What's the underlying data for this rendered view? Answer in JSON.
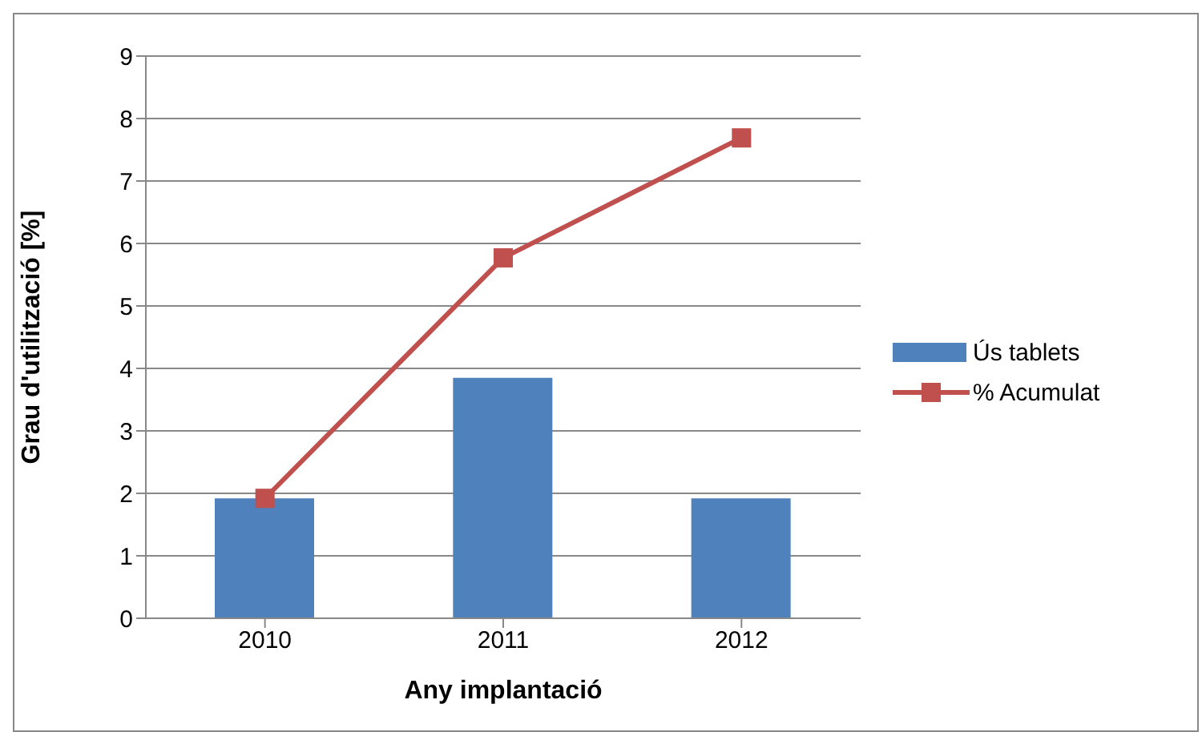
{
  "chart_data": {
    "type": "bar",
    "xlabel": "Any implantació",
    "ylabel": "Grau d'utilització [%]",
    "categories": [
      "2010",
      "2011",
      "2012"
    ],
    "series": [
      {
        "name": "Ús tablets",
        "color": "#4f81bd",
        "values": [
          1.92,
          3.85,
          1.92
        ]
      },
      {
        "name": "% Acumulat",
        "type": "line",
        "color": "#c0504d",
        "values": [
          1.92,
          5.77,
          7.69
        ],
        "marker": "square"
      }
    ],
    "ylim": [
      0,
      9
    ],
    "yticks": [
      0,
      1,
      2,
      3,
      4,
      5,
      6,
      7,
      8,
      9
    ],
    "grid": "y",
    "legend": "right"
  }
}
